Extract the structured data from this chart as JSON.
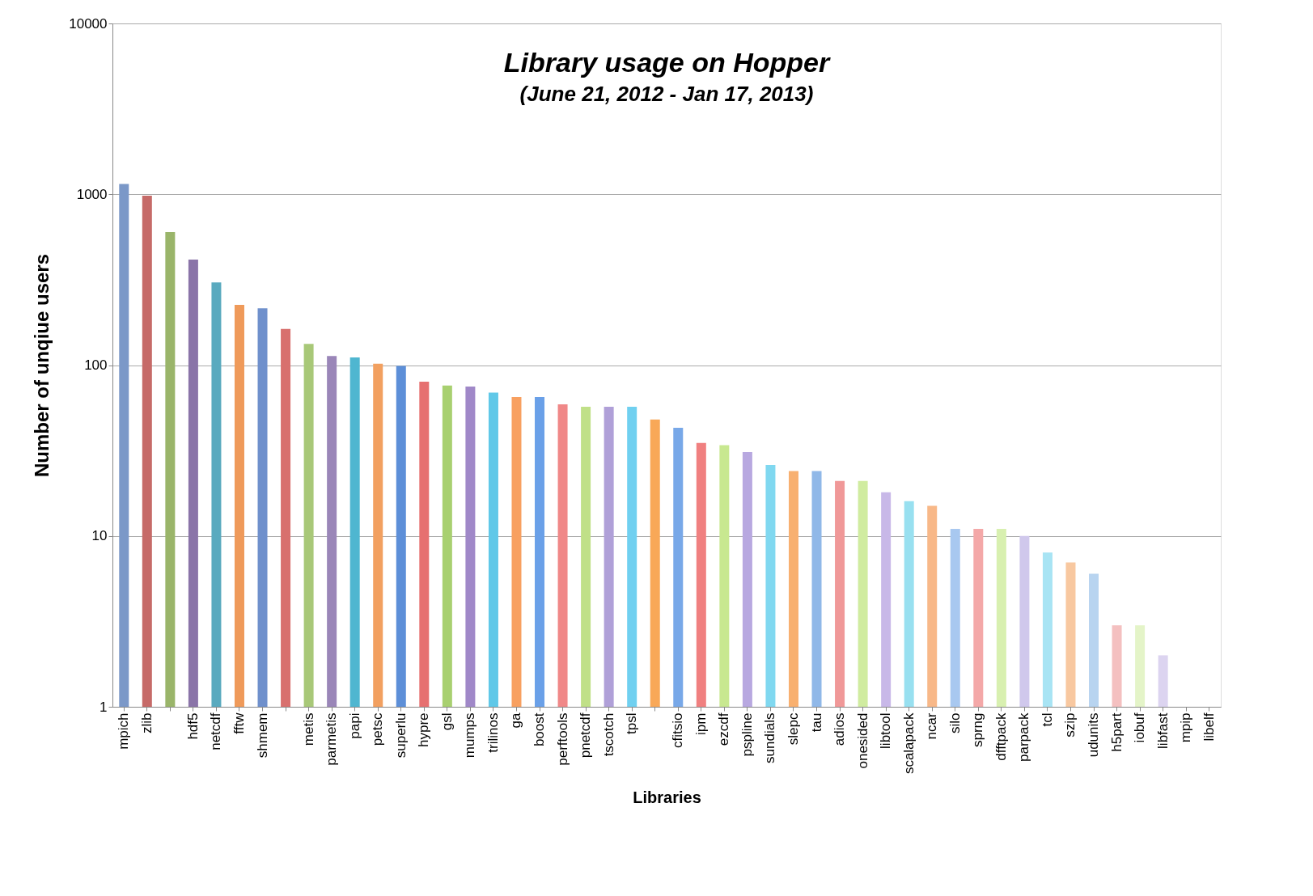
{
  "chart_data": {
    "type": "bar",
    "title": "Library usage on Hopper",
    "subtitle": "(June 21, 2012 - Jan 17, 2013)",
    "xlabel": "Libraries",
    "ylabel": "Number of unqiue users",
    "categories": [
      "mpich",
      "zlib",
      null,
      "hdf5",
      "netcdf",
      "fftw",
      "shmem",
      null,
      "metis",
      "parmetis",
      "papi",
      "petsc",
      "superlu",
      "hypre",
      "gsl",
      "mumps",
      "trilinos",
      "ga",
      "boost",
      "perftools",
      "pnetcdf",
      "tscotch",
      "tpsl",
      null,
      "cfitsio",
      "ipm",
      "ezcdf",
      "pspline",
      "sundials",
      "slepc",
      "tau",
      "adios",
      "onesided",
      "libtool",
      "scalapack",
      "ncar",
      "silo",
      "sprng",
      "dfftpack",
      "parpack",
      "tcl",
      "szip",
      "udunits",
      "h5part",
      "iobuf",
      "libfast",
      "mpip",
      "libelf"
    ],
    "values": [
      1150,
      980,
      600,
      415,
      305,
      225,
      215,
      163,
      133,
      113,
      111,
      102,
      99,
      80,
      76,
      75,
      69,
      65,
      65,
      59,
      57,
      57,
      57,
      48,
      43,
      35,
      34,
      31,
      26,
      24,
      24,
      21,
      21,
      18,
      16,
      15,
      11,
      11,
      11,
      10,
      8,
      7,
      6,
      3,
      3,
      2,
      1,
      1
    ],
    "colors": [
      "#7b98c8",
      "#c66a68",
      "#9ab56a",
      "#8a74a8",
      "#5aaabf",
      "#ef9a5a",
      "#6f90cc",
      "#d8706e",
      "#a8c878",
      "#9a86b8",
      "#4fb6d0",
      "#f2a060",
      "#5d8fd8",
      "#e67070",
      "#a8d070",
      "#a088c8",
      "#60c8e8",
      "#f8a060",
      "#6aa0e8",
      "#f08888",
      "#c0e088",
      "#b0a0d8",
      "#70d0f0",
      "#f8a858",
      "#78a8e8",
      "#f08080",
      "#c8e890",
      "#b8a8e0",
      "#80d8f0",
      "#f8b070",
      "#90b8e8",
      "#f09898",
      "#d0eca0",
      "#c8b8e8",
      "#98e0f0",
      "#f8b888",
      "#a8c8f0",
      "#f4a8a8",
      "#d8f0b0",
      "#d0c8ec",
      "#a8e4f4",
      "#f8c8a0",
      "#b8d4f0",
      "#f4c0c0",
      "#e4f4c8",
      "#dcd4f0",
      "#c0ecf8",
      "#f8d4b8"
    ],
    "log": true,
    "ylim": [
      1,
      10000
    ],
    "yticks": [
      1,
      10,
      100,
      1000,
      10000
    ],
    "grid": "y"
  }
}
